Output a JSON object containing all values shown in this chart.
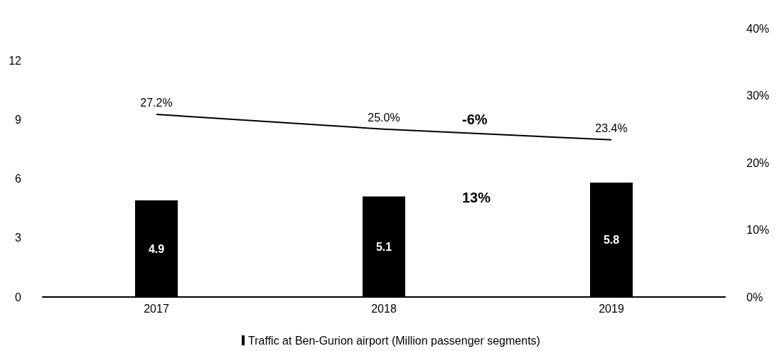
{
  "chart_data": {
    "type": "bar",
    "categories": [
      "2017",
      "2018",
      "2019"
    ],
    "series": [
      {
        "name": "Traffic at Ben-Gurion airport (Million passenger segments)",
        "color": "#000000",
        "values": [
          4.9,
          5.1,
          5.8
        ],
        "value_labels": [
          "4.9",
          "5.1",
          "5.8"
        ]
      },
      {
        "type": "line",
        "axis": "y2",
        "color": "#000000",
        "values": [
          27.2,
          25.0,
          23.4
        ],
        "value_labels": [
          "27.2%",
          "25.0%",
          "23.4%"
        ]
      }
    ],
    "ylim": [
      0,
      12
    ],
    "yticks": [
      0,
      3,
      6,
      9,
      12
    ],
    "y2lim": [
      0,
      40
    ],
    "y2ticks": [
      {
        "value": 0,
        "label": "0%"
      },
      {
        "value": 10,
        "label": "10%"
      },
      {
        "value": 20,
        "label": "20%"
      },
      {
        "value": 30,
        "label": "30%"
      },
      {
        "value": 40,
        "label": "40%"
      }
    ],
    "annotations": [
      "-6%",
      "13%"
    ],
    "grid": false,
    "legend": "bottom",
    "marker": "none",
    "line_style": "solid"
  }
}
